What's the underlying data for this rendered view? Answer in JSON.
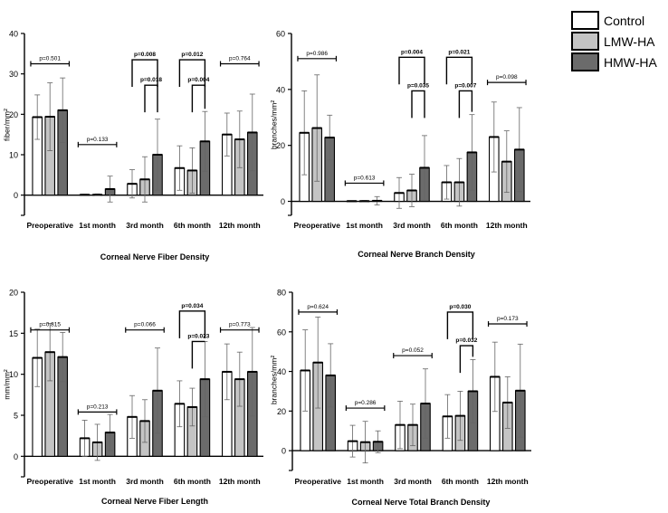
{
  "colors": {
    "control": "#ffffff",
    "lmw": "#c4c4c4",
    "hmw": "#6b6b6b",
    "stroke": "#000000"
  },
  "legend": {
    "entries": [
      {
        "name": "Control",
        "color": "#ffffff"
      },
      {
        "name": "LMW-HA",
        "color": "#c4c4c4"
      },
      {
        "name": "HMW-HA",
        "color": "#6b6b6b"
      }
    ]
  },
  "chart_data": [
    {
      "type": "bar",
      "title": "Corneal Nerve Fiber Density",
      "ylabel": "fiber/mm²",
      "ylim": [
        -5,
        40
      ],
      "yticks": [
        0,
        10,
        20,
        30,
        40
      ],
      "categories": [
        "Preoperative",
        "1st month",
        "3rd month",
        "6th month",
        "12th month"
      ],
      "series": [
        {
          "name": "Control",
          "values": [
            19.3,
            0.1,
            2.8,
            6.7,
            15.0
          ],
          "errors": [
            5.5,
            0.1,
            3.5,
            5.5,
            5.3
          ]
        },
        {
          "name": "LMW-HA",
          "values": [
            19.4,
            0.1,
            3.9,
            6.1,
            13.8
          ],
          "errors": [
            8.4,
            0.2,
            5.6,
            5.6,
            7.0
          ]
        },
        {
          "name": "HMW-HA",
          "values": [
            21.0,
            1.5,
            10.0,
            13.3,
            15.5
          ],
          "errors": [
            8.0,
            3.2,
            8.8,
            7.4,
            9.5
          ]
        }
      ],
      "annotations": [
        {
          "category": 0,
          "kind": "line",
          "text": "p=0.501",
          "bold": false,
          "y": 32.5
        },
        {
          "category": 1,
          "kind": "line",
          "text": "p=0.133",
          "bold": false,
          "y": 12.5
        },
        {
          "category": 2,
          "kind": "bracket",
          "text": "p=0.008",
          "bold": true,
          "from": 0,
          "to": 2,
          "y": 33.5
        },
        {
          "category": 2,
          "kind": "bracket",
          "text": "p=0.018",
          "bold": true,
          "from": 1,
          "to": 2,
          "y": 27.2
        },
        {
          "category": 3,
          "kind": "bracket",
          "text": "p=0.012",
          "bold": true,
          "from": 0,
          "to": 2,
          "y": 33.5
        },
        {
          "category": 3,
          "kind": "bracket",
          "text": "p=0.004",
          "bold": true,
          "from": 1,
          "to": 2,
          "y": 27.2
        },
        {
          "category": 4,
          "kind": "line",
          "text": "p=0.764",
          "bold": false,
          "y": 32.5
        }
      ]
    },
    {
      "type": "bar",
      "title": "Corneal Nerve Branch Density",
      "ylabel": "branches/mm²",
      "ylim": [
        -5,
        60
      ],
      "yticks": [
        0,
        20,
        40,
        60
      ],
      "categories": [
        "Preoperative",
        "1st month",
        "3rd month",
        "6th month",
        "12th month"
      ],
      "series": [
        {
          "name": "Control",
          "values": [
            24.5,
            0.1,
            3.0,
            6.8,
            23.0
          ],
          "errors": [
            15.0,
            0.1,
            5.5,
            6.0,
            12.5
          ]
        },
        {
          "name": "LMW-HA",
          "values": [
            26.2,
            0.1,
            3.9,
            6.8,
            14.2
          ],
          "errors": [
            19.0,
            0.2,
            5.8,
            8.5,
            11.0
          ]
        },
        {
          "name": "HMW-HA",
          "values": [
            22.8,
            0.2,
            12.0,
            17.5,
            18.5
          ],
          "errors": [
            8.0,
            1.5,
            11.5,
            13.5,
            15.0
          ]
        }
      ],
      "annotations": [
        {
          "category": 0,
          "kind": "line",
          "text": "p=0.986",
          "bold": false,
          "y": 51.0
        },
        {
          "category": 1,
          "kind": "line",
          "text": "p=0.613",
          "bold": false,
          "y": 6.5
        },
        {
          "category": 2,
          "kind": "bracket",
          "text": "p=0.004",
          "bold": true,
          "from": 0,
          "to": 2,
          "y": 51.5
        },
        {
          "category": 2,
          "kind": "bracket",
          "text": "p=0.035",
          "bold": true,
          "from": 1,
          "to": 2,
          "y": 39.5
        },
        {
          "category": 3,
          "kind": "bracket",
          "text": "p=0.021",
          "bold": true,
          "from": 0,
          "to": 2,
          "y": 51.5
        },
        {
          "category": 3,
          "kind": "bracket",
          "text": "p=0.007",
          "bold": true,
          "from": 1,
          "to": 2,
          "y": 39.5
        },
        {
          "category": 4,
          "kind": "line",
          "text": "p=0.098",
          "bold": false,
          "y": 42.5
        }
      ]
    },
    {
      "type": "bar",
      "title": "Corneal Nerve Fiber Length",
      "ylabel": "mm/mm²",
      "ylim": [
        -2.5,
        20
      ],
      "yticks": [
        0,
        5,
        10,
        15,
        20
      ],
      "categories": [
        "Preoperative",
        "1st month",
        "3rd month",
        "6th month",
        "12th month"
      ],
      "series": [
        {
          "name": "Control",
          "values": [
            12.0,
            2.2,
            4.8,
            6.4,
            10.3
          ],
          "errors": [
            3.5,
            2.2,
            2.6,
            2.8,
            3.4
          ]
        },
        {
          "name": "LMW-HA",
          "values": [
            12.7,
            1.7,
            4.3,
            6.0,
            9.4
          ],
          "errors": [
            3.5,
            2.2,
            2.6,
            2.3,
            3.3
          ]
        },
        {
          "name": "HMW-HA",
          "values": [
            12.1,
            2.9,
            8.0,
            9.4,
            10.3
          ],
          "errors": [
            3.0,
            2.2,
            5.2,
            4.6,
            5.4
          ]
        }
      ],
      "annotations": [
        {
          "category": 0,
          "kind": "line",
          "text": "p=0.815",
          "bold": false,
          "y": 15.4
        },
        {
          "category": 1,
          "kind": "line",
          "text": "p=0.213",
          "bold": false,
          "y": 5.4
        },
        {
          "category": 2,
          "kind": "line",
          "text": "p=0.066",
          "bold": false,
          "y": 15.4
        },
        {
          "category": 3,
          "kind": "bracket",
          "text": "p=0.034",
          "bold": true,
          "from": 0,
          "to": 2,
          "y": 17.7
        },
        {
          "category": 3,
          "kind": "bracket",
          "text": "p=0.023",
          "bold": true,
          "from": 1,
          "to": 2,
          "y": 14.0
        },
        {
          "category": 4,
          "kind": "line",
          "text": "p=0.773",
          "bold": false,
          "y": 15.4
        }
      ]
    },
    {
      "type": "bar",
      "title": "Corneal Nerve Total Branch Density",
      "ylabel": "branches/mm²",
      "ylim": [
        -10,
        80
      ],
      "yticks": [
        0,
        20,
        40,
        60,
        80
      ],
      "categories": [
        "Preoperative",
        "1st month",
        "3rd month",
        "6th month",
        "12th month"
      ],
      "series": [
        {
          "name": "Control",
          "values": [
            40.5,
            4.8,
            13.0,
            17.3,
            37.3
          ],
          "errors": [
            20.5,
            8.0,
            12.0,
            11.0,
            17.5
          ]
        },
        {
          "name": "LMW-HA",
          "values": [
            44.5,
            4.3,
            13.0,
            17.6,
            24.3
          ],
          "errors": [
            23.0,
            10.5,
            10.5,
            12.4,
            13.0
          ]
        },
        {
          "name": "HMW-HA",
          "values": [
            38.0,
            4.5,
            23.8,
            30.0,
            30.3
          ],
          "errors": [
            16.0,
            5.5,
            17.5,
            16.0,
            23.5
          ]
        }
      ],
      "annotations": [
        {
          "category": 0,
          "kind": "line",
          "text": "p=0.624",
          "bold": false,
          "y": 70.0
        },
        {
          "category": 1,
          "kind": "line",
          "text": "p=0.286",
          "bold": false,
          "y": 21.5
        },
        {
          "category": 2,
          "kind": "line",
          "text": "p=0.052",
          "bold": false,
          "y": 48.0
        },
        {
          "category": 3,
          "kind": "bracket",
          "text": "p=0.030",
          "bold": true,
          "from": 0,
          "to": 2,
          "y": 70.0
        },
        {
          "category": 3,
          "kind": "bracket",
          "text": "p=0.032",
          "bold": true,
          "from": 1,
          "to": 2,
          "y": 53.0
        },
        {
          "category": 4,
          "kind": "line",
          "text": "p=0.173",
          "bold": false,
          "y": 64.0
        }
      ]
    }
  ]
}
